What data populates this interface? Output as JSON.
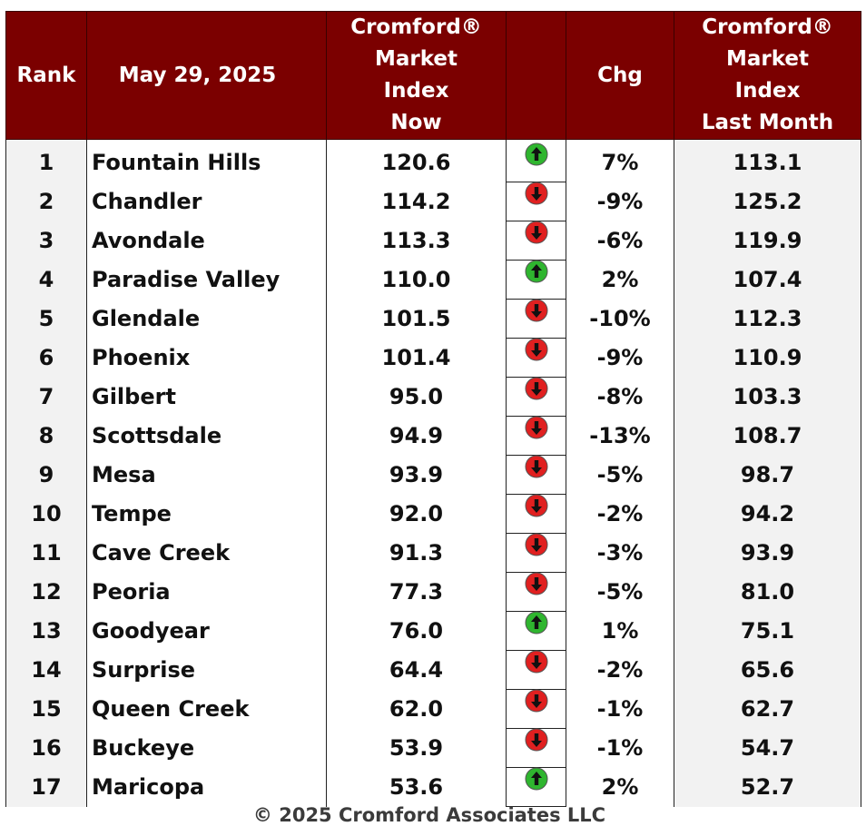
{
  "table": {
    "headers": {
      "rank": "Rank",
      "date": "May 29, 2025",
      "now": [
        "Cromford®",
        "Market",
        "Index",
        "Now"
      ],
      "chg": "Chg",
      "last": [
        "Cromford®",
        "Market",
        "Index",
        "Last Month"
      ]
    },
    "rows": [
      {
        "rank": "1",
        "city": "Fountain Hills",
        "now": "120.6",
        "dir": "up",
        "chg": "7%",
        "last": "113.1"
      },
      {
        "rank": "2",
        "city": "Chandler",
        "now": "114.2",
        "dir": "down",
        "chg": "-9%",
        "last": "125.2"
      },
      {
        "rank": "3",
        "city": "Avondale",
        "now": "113.3",
        "dir": "down",
        "chg": "-6%",
        "last": "119.9"
      },
      {
        "rank": "4",
        "city": "Paradise Valley",
        "now": "110.0",
        "dir": "up",
        "chg": "2%",
        "last": "107.4"
      },
      {
        "rank": "5",
        "city": "Glendale",
        "now": "101.5",
        "dir": "down",
        "chg": "-10%",
        "last": "112.3"
      },
      {
        "rank": "6",
        "city": "Phoenix",
        "now": "101.4",
        "dir": "down",
        "chg": "-9%",
        "last": "110.9"
      },
      {
        "rank": "7",
        "city": "Gilbert",
        "now": "95.0",
        "dir": "down",
        "chg": "-8%",
        "last": "103.3"
      },
      {
        "rank": "8",
        "city": "Scottsdale",
        "now": "94.9",
        "dir": "down",
        "chg": "-13%",
        "last": "108.7"
      },
      {
        "rank": "9",
        "city": "Mesa",
        "now": "93.9",
        "dir": "down",
        "chg": "-5%",
        "last": "98.7"
      },
      {
        "rank": "10",
        "city": "Tempe",
        "now": "92.0",
        "dir": "down",
        "chg": "-2%",
        "last": "94.2"
      },
      {
        "rank": "11",
        "city": "Cave Creek",
        "now": "91.3",
        "dir": "down",
        "chg": "-3%",
        "last": "93.9"
      },
      {
        "rank": "12",
        "city": "Peoria",
        "now": "77.3",
        "dir": "down",
        "chg": "-5%",
        "last": "81.0"
      },
      {
        "rank": "13",
        "city": "Goodyear",
        "now": "76.0",
        "dir": "up",
        "chg": "1%",
        "last": "75.1"
      },
      {
        "rank": "14",
        "city": "Surprise",
        "now": "64.4",
        "dir": "down",
        "chg": "-2%",
        "last": "65.6"
      },
      {
        "rank": "15",
        "city": "Queen Creek",
        "now": "62.0",
        "dir": "down",
        "chg": "-1%",
        "last": "62.7"
      },
      {
        "rank": "16",
        "city": "Buckeye",
        "now": "53.9",
        "dir": "down",
        "chg": "-1%",
        "last": "54.7"
      },
      {
        "rank": "17",
        "city": "Maricopa",
        "now": "53.6",
        "dir": "up",
        "chg": "2%",
        "last": "52.7"
      }
    ]
  },
  "footer": "© 2025 Cromford Associates LLC",
  "colors": {
    "header_bg": "#7b0000",
    "up_arrow": "#2fb52f",
    "down_arrow": "#e02020",
    "shaded_column": "#f2f2f2"
  },
  "icons": {
    "up": "green-up-arrow-icon",
    "down": "red-down-arrow-icon"
  }
}
